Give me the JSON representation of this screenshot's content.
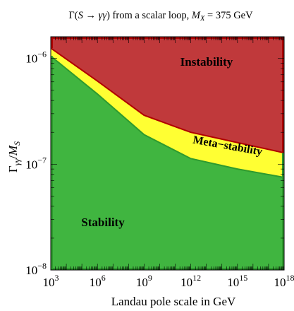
{
  "chart_data": {
    "type": "area",
    "title": "Γ(S → γγ) from a scalar loop, M_X = 375 GeV",
    "title_parts": {
      "lead": "Γ(",
      "S": "S",
      "arrow": " → ",
      "gg": "γγ",
      "mid": ") from a scalar loop, ",
      "M": "M",
      "X": "X",
      "value": " = 375 GeV"
    },
    "xlabel": "Landau pole scale in GeV",
    "ylabel": {
      "Gamma": "Γ",
      "sub": "γγ",
      "slash": "/",
      "M": "M",
      "S": "S"
    },
    "x_scale": "log",
    "y_scale": "log",
    "xlim": [
      1000,
      1e+18
    ],
    "ylim": [
      1e-08,
      1.6e-06
    ],
    "x_ticks": [
      {
        "value": 1000,
        "base": "10",
        "exp": "3"
      },
      {
        "value": 1000000,
        "base": "10",
        "exp": "6"
      },
      {
        "value": 1000000000,
        "base": "10",
        "exp": "9"
      },
      {
        "value": 1000000000000,
        "base": "10",
        "exp": "12"
      },
      {
        "value": 1000000000000000,
        "base": "10",
        "exp": "15"
      },
      {
        "value": 1e+18,
        "base": "10",
        "exp": "18"
      }
    ],
    "y_ticks": [
      {
        "value": 1e-08,
        "base": "10",
        "exp": "−8"
      },
      {
        "value": 1e-07,
        "base": "10",
        "exp": "−7"
      },
      {
        "value": 1e-06,
        "base": "10",
        "exp": "−6"
      }
    ],
    "regions": [
      {
        "label": "Stability",
        "color": "#40b540",
        "edge": "#2e9a2e"
      },
      {
        "label": "Meta−stability",
        "color": "#ffff33",
        "edge": "#d4c200"
      },
      {
        "label": "Instability",
        "color": "#c0393b",
        "edge": "#b00000"
      }
    ],
    "stability_boundary": {
      "x": [
        1000,
        1000000,
        1000000000,
        1000000000000,
        1000000000000000,
        1e+18
      ],
      "y": [
        1.05e-06,
        4.6e-07,
        1.9e-07,
        1.13e-07,
        9e-08,
        7.5e-08
      ]
    },
    "instability_boundary": {
      "x": [
        1000,
        1000000,
        1000000000,
        1000000000000,
        1000000000000000,
        1e+18
      ],
      "y": [
        1.25e-06,
        6.1e-07,
        2.9e-07,
        2e-07,
        1.6e-07,
        1.28e-07
      ]
    },
    "grid": false
  }
}
